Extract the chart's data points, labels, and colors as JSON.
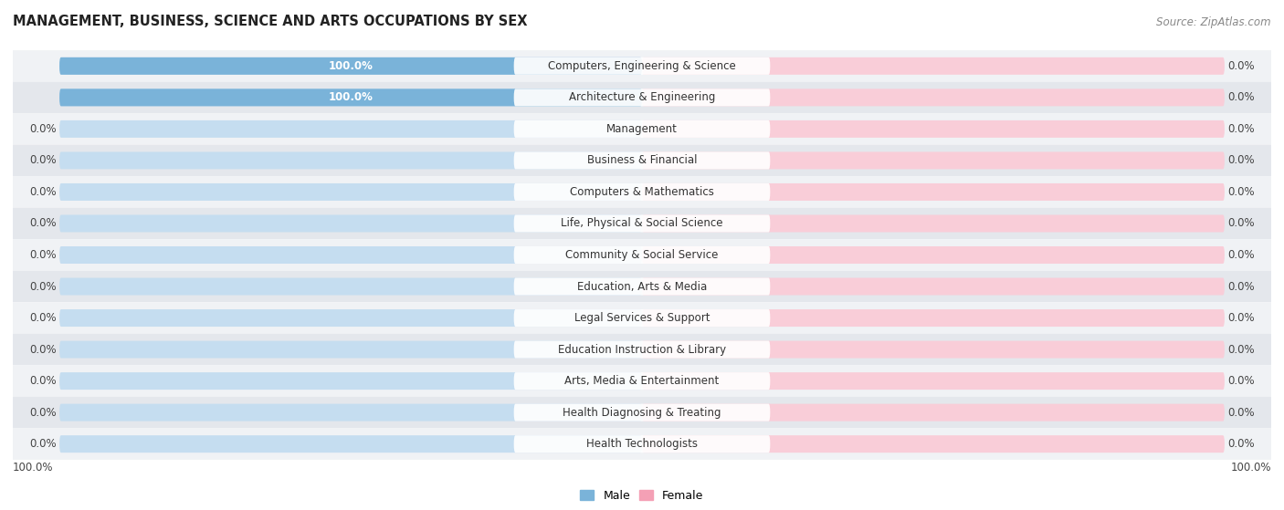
{
  "title": "MANAGEMENT, BUSINESS, SCIENCE AND ARTS OCCUPATIONS BY SEX",
  "source": "Source: ZipAtlas.com",
  "categories": [
    "Computers, Engineering & Science",
    "Architecture & Engineering",
    "Management",
    "Business & Financial",
    "Computers & Mathematics",
    "Life, Physical & Social Science",
    "Community & Social Service",
    "Education, Arts & Media",
    "Legal Services & Support",
    "Education Instruction & Library",
    "Arts, Media & Entertainment",
    "Health Diagnosing & Treating",
    "Health Technologists"
  ],
  "male_values": [
    100.0,
    100.0,
    0.0,
    0.0,
    0.0,
    0.0,
    0.0,
    0.0,
    0.0,
    0.0,
    0.0,
    0.0,
    0.0
  ],
  "female_values": [
    0.0,
    0.0,
    0.0,
    0.0,
    0.0,
    0.0,
    0.0,
    0.0,
    0.0,
    0.0,
    0.0,
    0.0,
    0.0
  ],
  "male_color": "#7ab3d9",
  "female_color": "#f4a0b5",
  "male_bg_color": "#c5ddf0",
  "female_bg_color": "#f9cdd8",
  "male_label": "Male",
  "female_label": "Female",
  "row_bg_even": "#f0f2f5",
  "row_bg_odd": "#e4e7ec",
  "title_fontsize": 10.5,
  "source_fontsize": 8.5,
  "label_fontsize": 8.5,
  "value_fontsize": 8.5,
  "figsize": [
    14.06,
    5.59
  ]
}
